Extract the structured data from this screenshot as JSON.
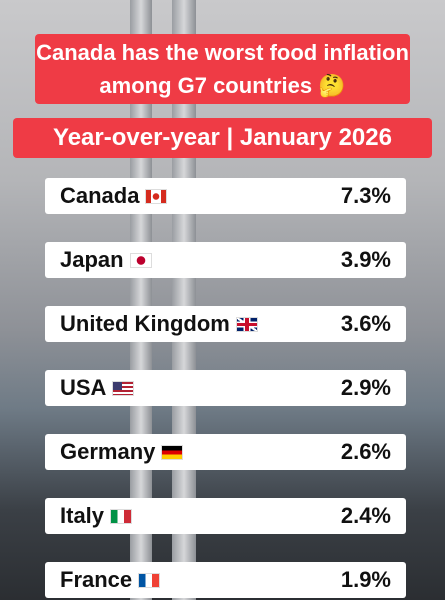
{
  "header": {
    "title": "Canada has the worst food inflation among G7 countries 🤔",
    "subtitle": "Year-over-year | January 2026"
  },
  "rows": [
    {
      "country": "Canada",
      "value": "7.3%"
    },
    {
      "country": "Japan",
      "value": "3.9%"
    },
    {
      "country": "United Kingdom",
      "value": "3.6%"
    },
    {
      "country": "USA",
      "value": "2.9%"
    },
    {
      "country": "Germany",
      "value": "2.6%"
    },
    {
      "country": "Italy",
      "value": "2.4%"
    },
    {
      "country": "France",
      "value": "1.9%"
    }
  ]
}
